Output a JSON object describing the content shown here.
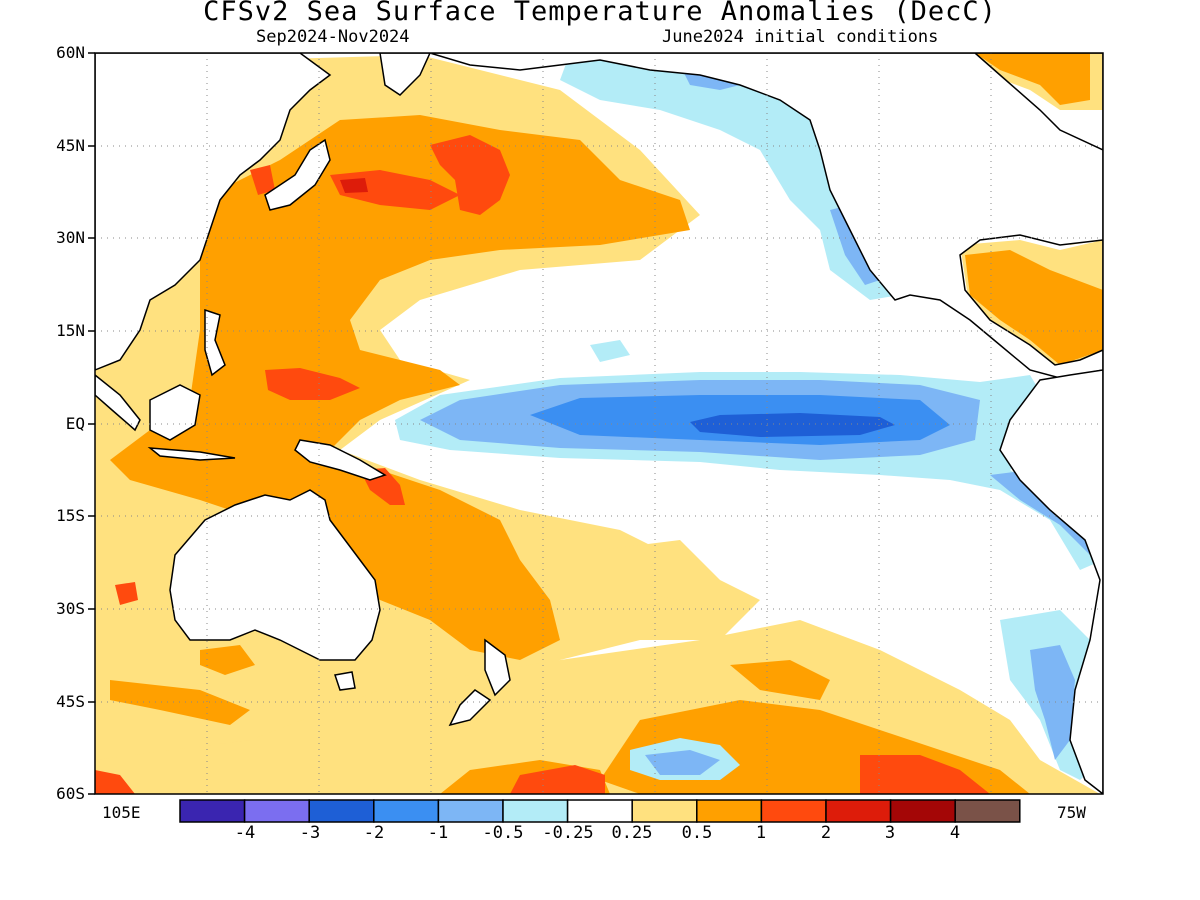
{
  "title": "CFSv2 Sea Surface Temperature Anomalies (DecC)",
  "subtitle_left": "Sep2024-Nov2024",
  "subtitle_right": "June2024 initial conditions",
  "y_axis_labels": [
    "60N",
    "45N",
    "30N",
    "15N",
    "EQ",
    "15S",
    "30S",
    "45S",
    "60S"
  ],
  "x_axis_labels": {
    "left": "105E",
    "right": "75W"
  },
  "colorbar": {
    "labels": [
      "-4",
      "-3",
      "-2",
      "-1",
      "-0.5",
      "-0.25",
      "0.25",
      "0.5",
      "1",
      "2",
      "3",
      "4"
    ],
    "colors": [
      "#3a25b0",
      "#7b6ef0",
      "#1e5fd6",
      "#3b8ff2",
      "#7db6f5",
      "#b3ecf7",
      "#ffffff",
      "#ffe17f",
      "#ffa000",
      "#ff4a0e",
      "#dd1c0a",
      "#a40606",
      "#7a5248"
    ]
  },
  "map": {
    "ocean_color": "#ffffff",
    "land_color": "#ffffff",
    "coastline_color": "#000000",
    "grid": true
  }
}
